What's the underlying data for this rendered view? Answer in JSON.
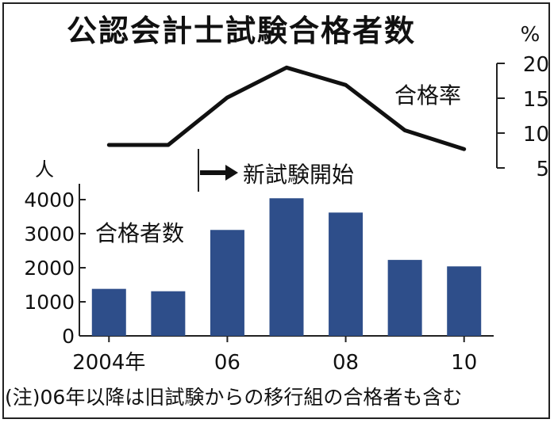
{
  "title": "公認会計士試験合格者数",
  "note": "(注)06年以降は旧試験からの移行組の合格者も含む",
  "chart_data": [
    {
      "type": "line",
      "series": [
        {
          "name": "合格率",
          "values": [
            8.3,
            8.3,
            15.1,
            19.4,
            16.9,
            10.4,
            7.7
          ]
        }
      ],
      "x": [
        "2004",
        "2005",
        "2006",
        "2007",
        "2008",
        "2009",
        "2010"
      ],
      "ylabel": "%",
      "yticks": [
        5,
        10,
        15,
        20
      ],
      "ylim": [
        5,
        20
      ],
      "grid": false
    },
    {
      "type": "bar",
      "series": [
        {
          "name": "合格者数",
          "values": [
            1380,
            1310,
            3110,
            4040,
            3620,
            2230,
            2040
          ]
        }
      ],
      "categories": [
        "2004",
        "2005",
        "2006",
        "2007",
        "2008",
        "2009",
        "2010"
      ],
      "tick_labels": [
        "2004年",
        "06",
        "08",
        "10"
      ],
      "ylabel": "人",
      "yticks": [
        0,
        1000,
        2000,
        3000,
        4000
      ],
      "ylim": [
        0,
        4000
      ],
      "bar_color": "#2e4e8a",
      "grid": false
    }
  ],
  "annotation": "新試験開始"
}
